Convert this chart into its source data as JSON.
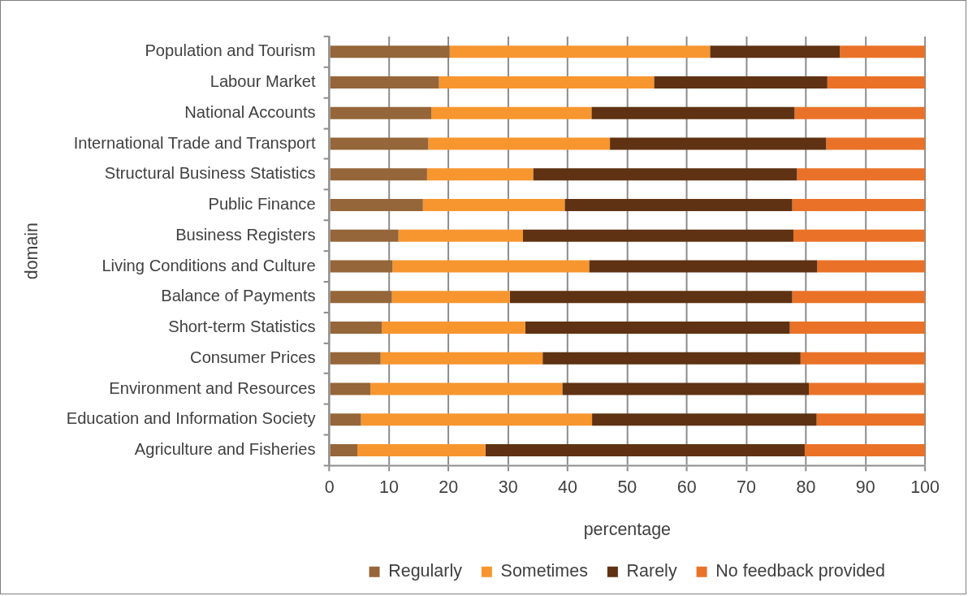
{
  "chart_data": {
    "type": "bar",
    "orientation": "horizontal",
    "stacked": true,
    "xlabel": "percentage",
    "ylabel": "domain",
    "categories": [
      "Population and Tourism",
      "Labour Market",
      "National Accounts",
      "International Trade and Transport",
      "Structural Business Statistics",
      "Public Finance",
      "Business Registers",
      "Living Conditions and Culture",
      "Balance of Payments",
      "Short-term Statistics",
      "Consumer Prices",
      "Environment and Resources",
      "Education and Information Society",
      "Agriculture and Fisheries"
    ],
    "series": [
      {
        "name": "Regularly",
        "color": "#946639",
        "values": [
          20.2,
          18.4,
          17.1,
          16.6,
          16.4,
          15.7,
          11.6,
          10.6,
          10.5,
          8.8,
          8.6,
          6.9,
          5.3,
          4.7
        ]
      },
      {
        "name": "Sometimes",
        "color": "#f7962e",
        "values": [
          43.7,
          36.1,
          26.9,
          30.5,
          17.8,
          23.8,
          20.9,
          33.0,
          19.8,
          24.1,
          27.2,
          32.2,
          38.8,
          21.5
        ]
      },
      {
        "name": "Rarely",
        "color": "#5e3212",
        "values": [
          21.8,
          29.1,
          34.1,
          36.3,
          44.3,
          38.2,
          45.4,
          38.3,
          47.4,
          44.4,
          43.3,
          41.4,
          37.7,
          53.6
        ]
      },
      {
        "name": "No feedback provided",
        "color": "#e97228",
        "values": [
          14.3,
          16.4,
          21.9,
          16.6,
          21.5,
          22.3,
          22.1,
          18.1,
          22.3,
          22.7,
          20.9,
          19.5,
          18.2,
          20.2
        ]
      }
    ],
    "xlim": [
      0,
      100
    ],
    "xticks": [
      0,
      10,
      20,
      30,
      40,
      50,
      60,
      70,
      80,
      90,
      100
    ],
    "grid": "x",
    "legend": "bottom"
  }
}
